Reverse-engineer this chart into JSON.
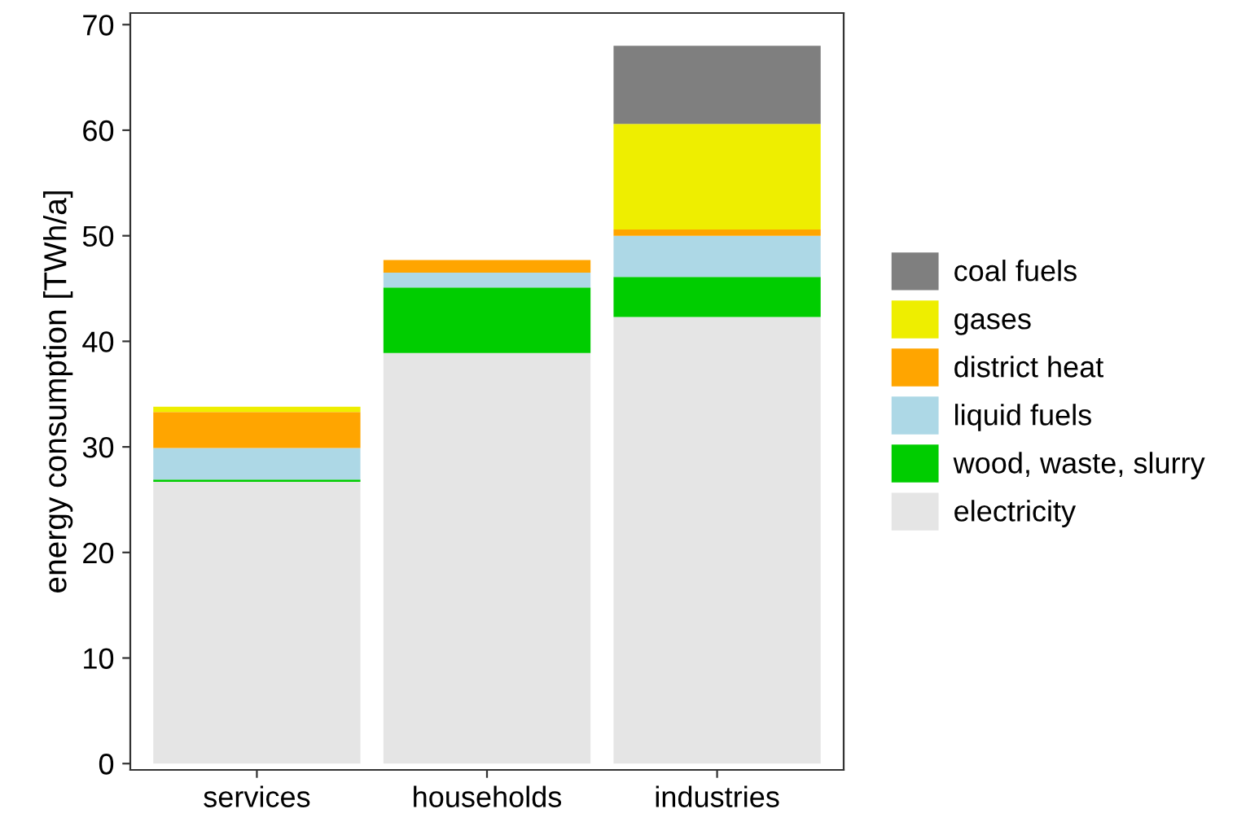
{
  "chart_data": {
    "type": "bar",
    "stacked": true,
    "ylabel": "energy consumption [TWh/a]",
    "categories": [
      "services",
      "households",
      "industries"
    ],
    "series": [
      {
        "name": "electricity",
        "color": "#e5e5e5",
        "values": [
          26.7,
          38.9,
          42.3
        ]
      },
      {
        "name": "wood, waste, slurry",
        "color": "#00cd00",
        "values": [
          0.2,
          6.2,
          3.8
        ]
      },
      {
        "name": "liquid fuels",
        "color": "#add8e6",
        "values": [
          3.0,
          1.4,
          3.9
        ]
      },
      {
        "name": "district heat",
        "color": "#ffa500",
        "values": [
          3.4,
          1.2,
          0.6
        ]
      },
      {
        "name": "gases",
        "color": "#eeee00",
        "values": [
          0.5,
          0,
          10.0
        ]
      },
      {
        "name": "coal fuels",
        "color": "#7f7f7f",
        "values": [
          0,
          0,
          7.4
        ]
      }
    ],
    "ylim": [
      -0.6,
      71.1
    ],
    "yticks": [
      0,
      10,
      20,
      30,
      40,
      50,
      60,
      70
    ],
    "grid": false,
    "legend": "right"
  }
}
